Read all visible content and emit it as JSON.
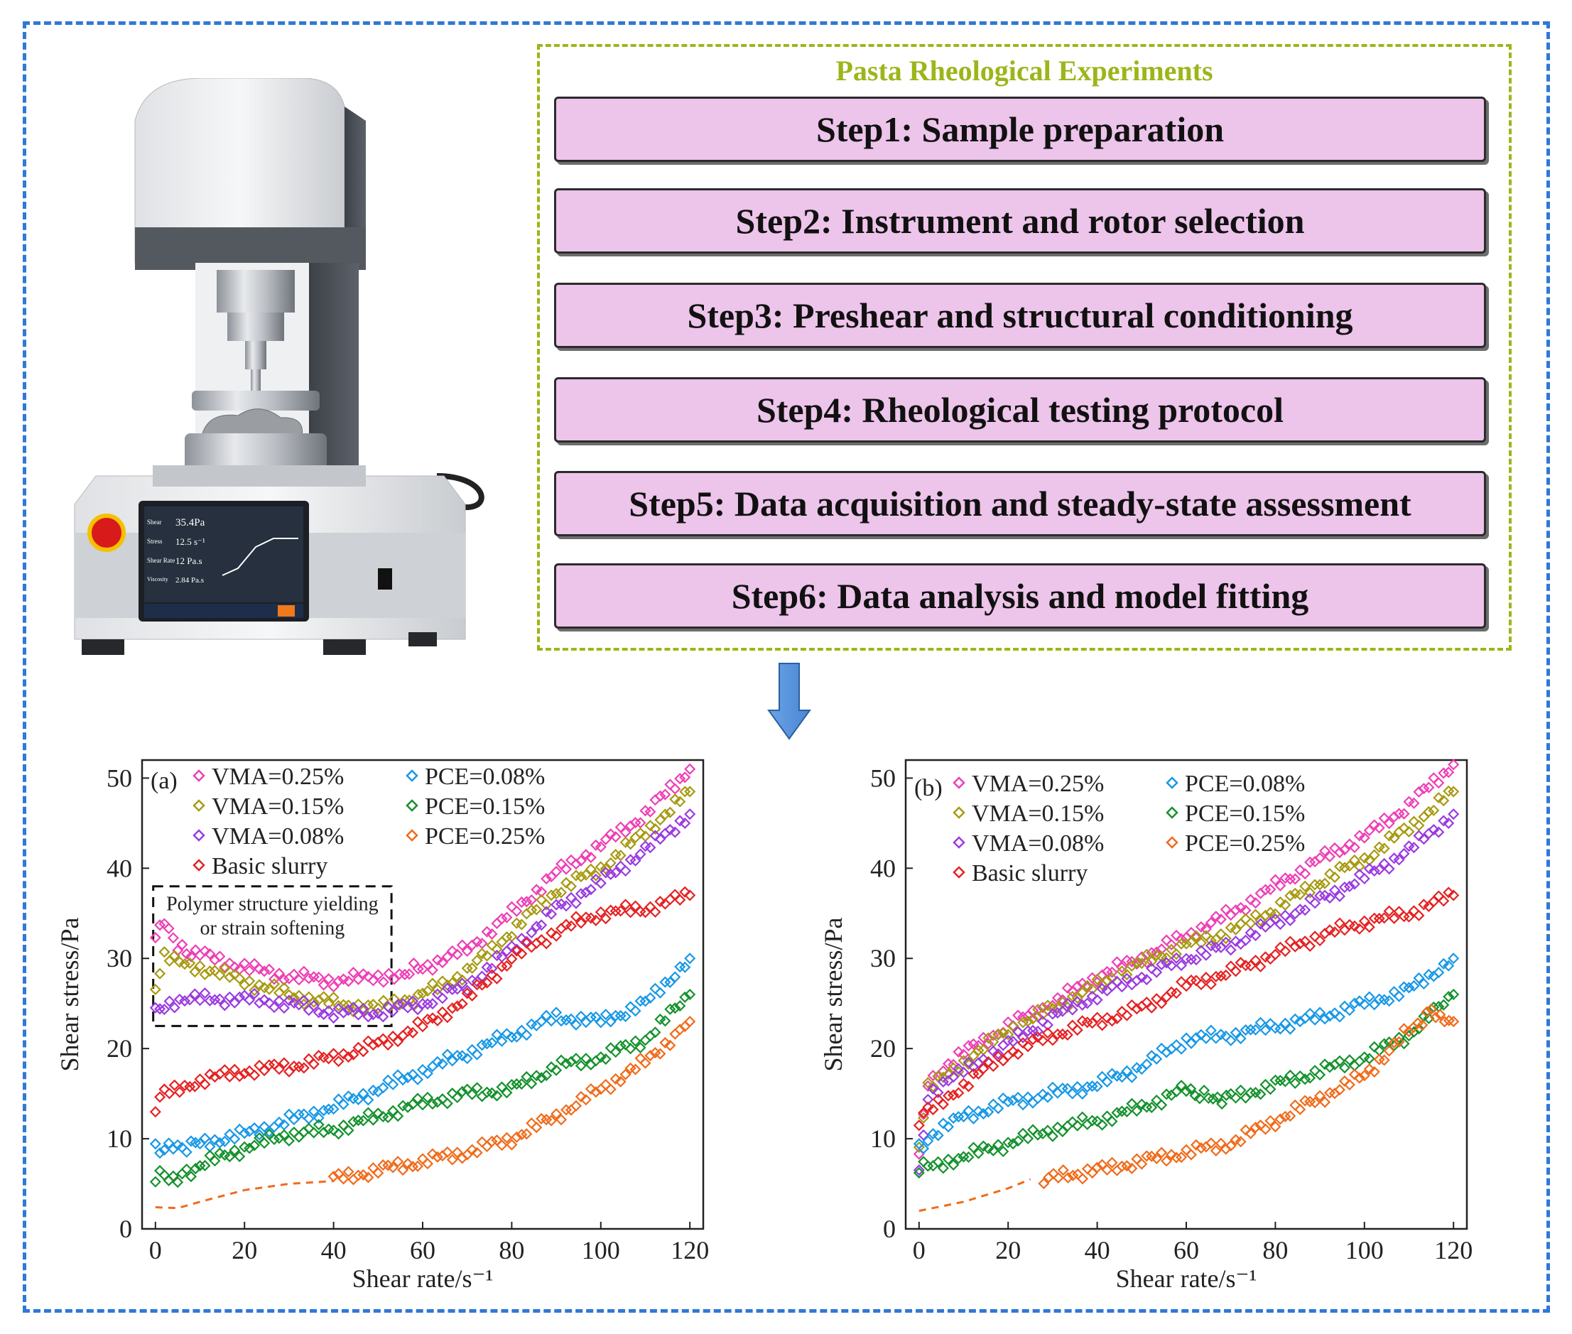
{
  "steps_title": "Pasta Rheological Experiments",
  "steps": [
    "Step1: Sample preparation",
    "Step2: Instrument and rotor selection",
    "Step3: Preshear and structural conditioning",
    "Step4: Rheological testing protocol",
    "Step5: Data acquisition and steady-state assessment",
    "Step6: Data analysis and model fitting"
  ],
  "instrument": {
    "screen_labels": [
      "Shear",
      "Stress",
      "Shear Rate",
      "Viscosity"
    ],
    "screen_values": [
      "35.4Pa",
      "12.5 s⁻¹",
      "12 Pa.s",
      "2.84 Pa.s"
    ]
  },
  "colors": {
    "vma025": "#ee3fb5",
    "vma015": "#a79a12",
    "vma008": "#9b3be0",
    "basic": "#e52222",
    "pce008": "#1898e6",
    "pce015": "#15912d",
    "pce025": "#f06b1b"
  },
  "chart_data": [
    {
      "type": "scatter",
      "panel_label": "(a)",
      "xlabel": "Shear rate/s⁻¹",
      "ylabel": "Shear stress/Pa",
      "xlim": [
        -3,
        123
      ],
      "ylim": [
        0,
        52
      ],
      "xticks": [
        "0",
        "20",
        "40",
        "60",
        "80",
        "100",
        "120"
      ],
      "yticks": [
        "0",
        "10",
        "20",
        "30",
        "40",
        "50"
      ],
      "annotation": [
        "Polymer structure yielding",
        "or strain softening"
      ],
      "series": [
        {
          "name": "VMA=0.25%",
          "key": "vma025",
          "points": [
            [
              0,
              32
            ],
            [
              2,
              34.5
            ],
            [
              5,
              31
            ],
            [
              10,
              30.5
            ],
            [
              20,
              29
            ],
            [
              30,
              28
            ],
            [
              40,
              27.5
            ],
            [
              50,
              28
            ],
            [
              56,
              28.5
            ],
            [
              60,
              29
            ],
            [
              70,
              31
            ],
            [
              80,
              35
            ],
            [
              90,
              39.5
            ],
            [
              100,
              42.5
            ],
            [
              110,
              46
            ],
            [
              120,
              51
            ]
          ]
        },
        {
          "name": "VMA=0.15%",
          "key": "vma015",
          "points": [
            [
              0,
              27
            ],
            [
              2,
              30
            ],
            [
              10,
              29
            ],
            [
              20,
              27.5
            ],
            [
              30,
              26
            ],
            [
              40,
              25
            ],
            [
              50,
              24.5
            ],
            [
              56,
              25
            ],
            [
              60,
              26
            ],
            [
              70,
              28.5
            ],
            [
              80,
              33
            ],
            [
              90,
              37.5
            ],
            [
              100,
              40
            ],
            [
              110,
              44
            ],
            [
              120,
              48.5
            ]
          ]
        },
        {
          "name": "VMA=0.08%",
          "key": "vma008",
          "points": [
            [
              0,
              24
            ],
            [
              2,
              25
            ],
            [
              10,
              25.5
            ],
            [
              20,
              25.5
            ],
            [
              30,
              25
            ],
            [
              40,
              24
            ],
            [
              50,
              24
            ],
            [
              60,
              25
            ],
            [
              70,
              27
            ],
            [
              80,
              31
            ],
            [
              90,
              35.5
            ],
            [
              100,
              38.5
            ],
            [
              110,
              42
            ],
            [
              120,
              46
            ]
          ]
        },
        {
          "name": "Basic slurry",
          "key": "basic",
          "points": [
            [
              0,
              13.5
            ],
            [
              2,
              15
            ],
            [
              10,
              16.5
            ],
            [
              20,
              17.5
            ],
            [
              30,
              18
            ],
            [
              40,
              19
            ],
            [
              50,
              20.5
            ],
            [
              60,
              22.5
            ],
            [
              70,
              25.5
            ],
            [
              80,
              30
            ],
            [
              90,
              33
            ],
            [
              100,
              35
            ],
            [
              110,
              35.5
            ],
            [
              120,
              37
            ]
          ]
        },
        {
          "name": "PCE=0.08%",
          "key": "pce008",
          "points": [
            [
              0,
              9
            ],
            [
              5,
              9
            ],
            [
              10,
              9.5
            ],
            [
              20,
              10.5
            ],
            [
              30,
              12
            ],
            [
              40,
              13.5
            ],
            [
              50,
              15.5
            ],
            [
              60,
              17.5
            ],
            [
              70,
              19.5
            ],
            [
              80,
              21.5
            ],
            [
              90,
              23.5
            ],
            [
              100,
              23
            ],
            [
              110,
              25
            ],
            [
              120,
              30
            ]
          ]
        },
        {
          "name": "PCE=0.15%",
          "key": "pce015",
          "points": [
            [
              0,
              5.5
            ],
            [
              2,
              6
            ],
            [
              5,
              5.5
            ],
            [
              10,
              7
            ],
            [
              20,
              9
            ],
            [
              30,
              10.5
            ],
            [
              40,
              11
            ],
            [
              50,
              12.5
            ],
            [
              60,
              14
            ],
            [
              70,
              15
            ],
            [
              80,
              15.5
            ],
            [
              90,
              18
            ],
            [
              100,
              19
            ],
            [
              110,
              21
            ],
            [
              120,
              26
            ]
          ]
        },
        {
          "name": "PCE=0.25%",
          "key": "pce025",
          "points": [
            [
              40,
              5.5
            ],
            [
              50,
              6.5
            ],
            [
              60,
              7.5
            ],
            [
              70,
              8.5
            ],
            [
              80,
              10
            ],
            [
              90,
              12.5
            ],
            [
              100,
              15.5
            ],
            [
              110,
              18.5
            ],
            [
              120,
              23
            ]
          ]
        }
      ],
      "dashed_line": {
        "key": "pce025",
        "points": [
          [
            0,
            2.4
          ],
          [
            5,
            2.3
          ],
          [
            10,
            3
          ],
          [
            20,
            4.3
          ],
          [
            30,
            5
          ],
          [
            40,
            5.3
          ]
        ]
      }
    },
    {
      "type": "scatter",
      "panel_label": "(b)",
      "xlabel": "Shear rate/s⁻¹",
      "ylabel": "Shear stress/Pa",
      "xlim": [
        -3,
        123
      ],
      "ylim": [
        0,
        52
      ],
      "xticks": [
        "0",
        "20",
        "40",
        "60",
        "80",
        "100",
        "120"
      ],
      "yticks": [
        "0",
        "10",
        "20",
        "30",
        "40",
        "50"
      ],
      "series": [
        {
          "name": "VMA=0.25%",
          "key": "vma025",
          "points": [
            [
              0,
              8
            ],
            [
              2,
              16.5
            ],
            [
              10,
              19.5
            ],
            [
              20,
              22.5
            ],
            [
              30,
              25
            ],
            [
              40,
              28
            ],
            [
              50,
              30
            ],
            [
              60,
              32.5
            ],
            [
              70,
              35
            ],
            [
              80,
              38
            ],
            [
              90,
              41
            ],
            [
              100,
              43.5
            ],
            [
              110,
              47
            ],
            [
              120,
              51.5
            ]
          ]
        },
        {
          "name": "VMA=0.15%",
          "key": "vma015",
          "points": [
            [
              0,
              9.5
            ],
            [
              2,
              15.5
            ],
            [
              10,
              18.5
            ],
            [
              20,
              22
            ],
            [
              30,
              24.5
            ],
            [
              40,
              27
            ],
            [
              50,
              29.5
            ],
            [
              60,
              31.5
            ],
            [
              70,
              33
            ],
            [
              80,
              35.5
            ],
            [
              90,
              38.5
            ],
            [
              100,
              41
            ],
            [
              110,
              44.5
            ],
            [
              120,
              48.5
            ]
          ]
        },
        {
          "name": "VMA=0.08%",
          "key": "vma008",
          "points": [
            [
              0,
              6
            ],
            [
              2,
              15
            ],
            [
              10,
              17.5
            ],
            [
              20,
              20.5
            ],
            [
              30,
              23.5
            ],
            [
              40,
              26
            ],
            [
              50,
              28
            ],
            [
              60,
              30
            ],
            [
              70,
              31.5
            ],
            [
              80,
              34
            ],
            [
              90,
              36.5
            ],
            [
              100,
              39
            ],
            [
              110,
              42
            ],
            [
              120,
              46
            ]
          ]
        },
        {
          "name": "Basic slurry",
          "key": "basic",
          "points": [
            [
              0,
              12
            ],
            [
              2,
              13
            ],
            [
              10,
              16
            ],
            [
              20,
              19.5
            ],
            [
              30,
              21.5
            ],
            [
              40,
              23
            ],
            [
              50,
              24.5
            ],
            [
              60,
              27
            ],
            [
              70,
              28.5
            ],
            [
              80,
              30.5
            ],
            [
              90,
              32.5
            ],
            [
              100,
              34
            ],
            [
              110,
              35
            ],
            [
              120,
              37
            ]
          ]
        },
        {
          "name": "PCE=0.08%",
          "key": "pce008",
          "points": [
            [
              0,
              9
            ],
            [
              2,
              10
            ],
            [
              10,
              12.5
            ],
            [
              20,
              14
            ],
            [
              30,
              15
            ],
            [
              40,
              16
            ],
            [
              50,
              18
            ],
            [
              60,
              21
            ],
            [
              70,
              21.5
            ],
            [
              80,
              22.5
            ],
            [
              90,
              23.5
            ],
            [
              100,
              25
            ],
            [
              110,
              26.5
            ],
            [
              120,
              30
            ]
          ]
        },
        {
          "name": "PCE=0.15%",
          "key": "pce015",
          "points": [
            [
              0,
              6.5
            ],
            [
              2,
              7
            ],
            [
              10,
              8
            ],
            [
              20,
              9.5
            ],
            [
              30,
              11
            ],
            [
              40,
              12
            ],
            [
              50,
              13.5
            ],
            [
              60,
              15.5
            ],
            [
              65,
              14.5
            ],
            [
              70,
              14.5
            ],
            [
              80,
              16
            ],
            [
              90,
              17.5
            ],
            [
              100,
              19
            ],
            [
              110,
              21.5
            ],
            [
              120,
              26
            ]
          ]
        },
        {
          "name": "PCE=0.25%",
          "key": "pce025",
          "points": [
            [
              28,
              5.5
            ],
            [
              40,
              6.5
            ],
            [
              50,
              7.5
            ],
            [
              60,
              8.5
            ],
            [
              70,
              9.5
            ],
            [
              80,
              12
            ],
            [
              90,
              14.5
            ],
            [
              100,
              17
            ],
            [
              110,
              22
            ],
            [
              115,
              24
            ],
            [
              120,
              23
            ]
          ]
        }
      ],
      "dashed_line": {
        "key": "pce025",
        "points": [
          [
            0,
            2
          ],
          [
            10,
            3
          ],
          [
            20,
            4.5
          ],
          [
            25,
            5.5
          ]
        ]
      }
    }
  ]
}
